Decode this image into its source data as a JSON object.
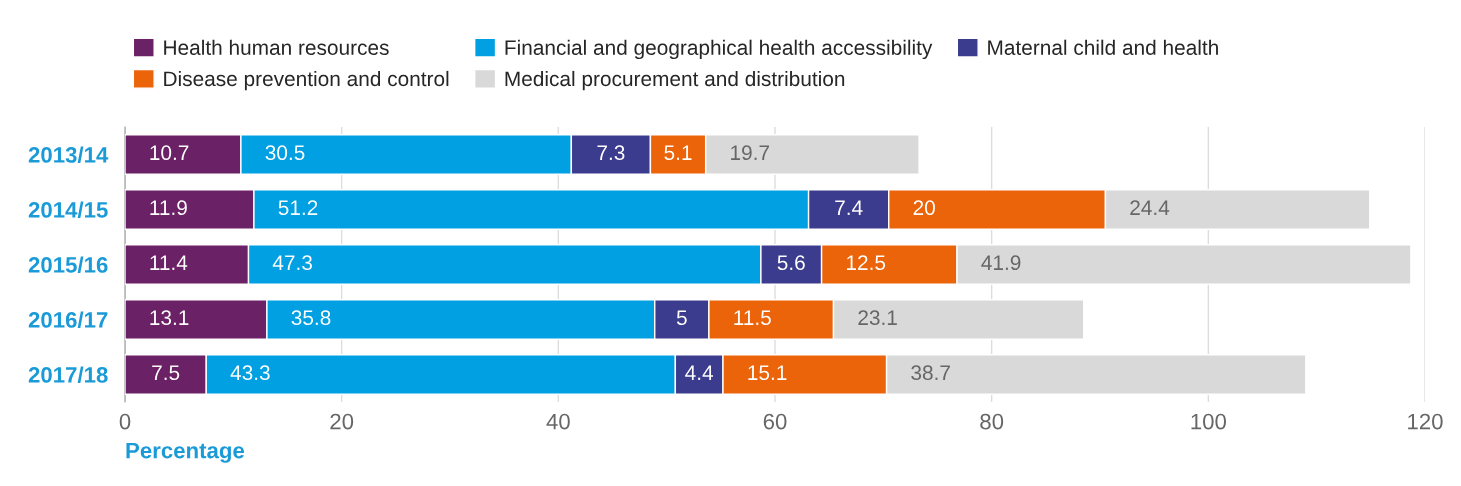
{
  "chart_data": {
    "type": "bar",
    "orientation": "horizontal",
    "stacked": true,
    "categories": [
      "2013/14",
      "2014/15",
      "2015/16",
      "2016/17",
      "2017/18"
    ],
    "series": [
      {
        "name": "Health human resources",
        "color": "#6b2165",
        "values": [
          10.7,
          11.9,
          11.4,
          13.1,
          7.5
        ]
      },
      {
        "name": "Financial and geographical health accessibility",
        "color": "#00a0e2",
        "values": [
          30.5,
          51.2,
          47.3,
          35.8,
          43.3
        ]
      },
      {
        "name": "Maternal child and health",
        "color": "#3c3c8e",
        "values": [
          7.3,
          7.4,
          5.6,
          5,
          4.4
        ]
      },
      {
        "name": "Disease prevention and control",
        "color": "#ec6409",
        "values": [
          5.1,
          20,
          12.5,
          11.5,
          15.1
        ]
      },
      {
        "name": "Medical procurement and distribution",
        "color": "#d9d9d9",
        "values": [
          19.7,
          24.4,
          41.9,
          23.1,
          38.7
        ]
      }
    ],
    "xlim": [
      0,
      120
    ],
    "xticks": [
      0,
      20,
      40,
      60,
      80,
      100,
      120
    ],
    "xlabel": "Percentage",
    "grid": "x",
    "legend": "top left",
    "data_labels": true
  }
}
